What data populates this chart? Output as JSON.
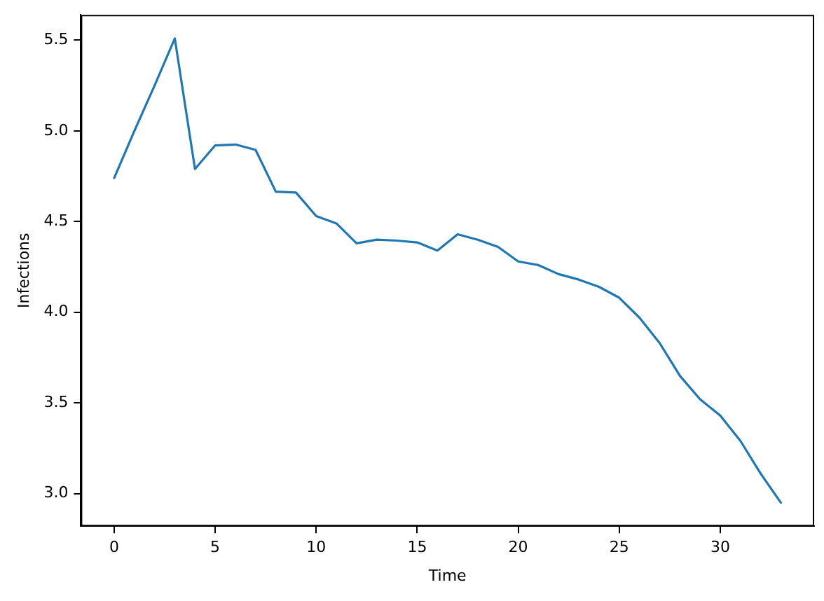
{
  "chart_data": {
    "type": "line",
    "xlabel": "Time",
    "ylabel": "Infections",
    "x": [
      0,
      1,
      2,
      3,
      4,
      5,
      6,
      7,
      8,
      9,
      10,
      11,
      12,
      13,
      14,
      15,
      16,
      17,
      18,
      19,
      20,
      21,
      22,
      23,
      24,
      25,
      26,
      27,
      28,
      29,
      30,
      31,
      32,
      33
    ],
    "series": [
      {
        "color": "#1f77b4",
        "values": [
          4.74,
          5.0,
          5.25,
          5.51,
          4.79,
          4.92,
          4.925,
          4.895,
          4.665,
          4.66,
          4.53,
          4.49,
          4.38,
          4.4,
          4.395,
          4.385,
          4.34,
          4.43,
          4.4,
          4.36,
          4.28,
          4.26,
          4.21,
          4.18,
          4.14,
          4.08,
          3.97,
          3.83,
          3.65,
          3.52,
          3.43,
          3.29,
          3.11,
          2.95
        ]
      }
    ],
    "xlim": [
      -1.65,
      34.65
    ],
    "xticks": [
      0,
      5,
      10,
      15,
      20,
      25,
      30
    ],
    "ylim": [
      2.82,
      5.64
    ],
    "yticks": [
      {
        "value": 3,
        "label": "3.0"
      },
      3.5,
      {
        "value": 4,
        "label": "4.0"
      },
      4.5,
      {
        "value": 5,
        "label": "5.0"
      },
      5.5
    ],
    "marker": "none",
    "line_style": "solid"
  }
}
